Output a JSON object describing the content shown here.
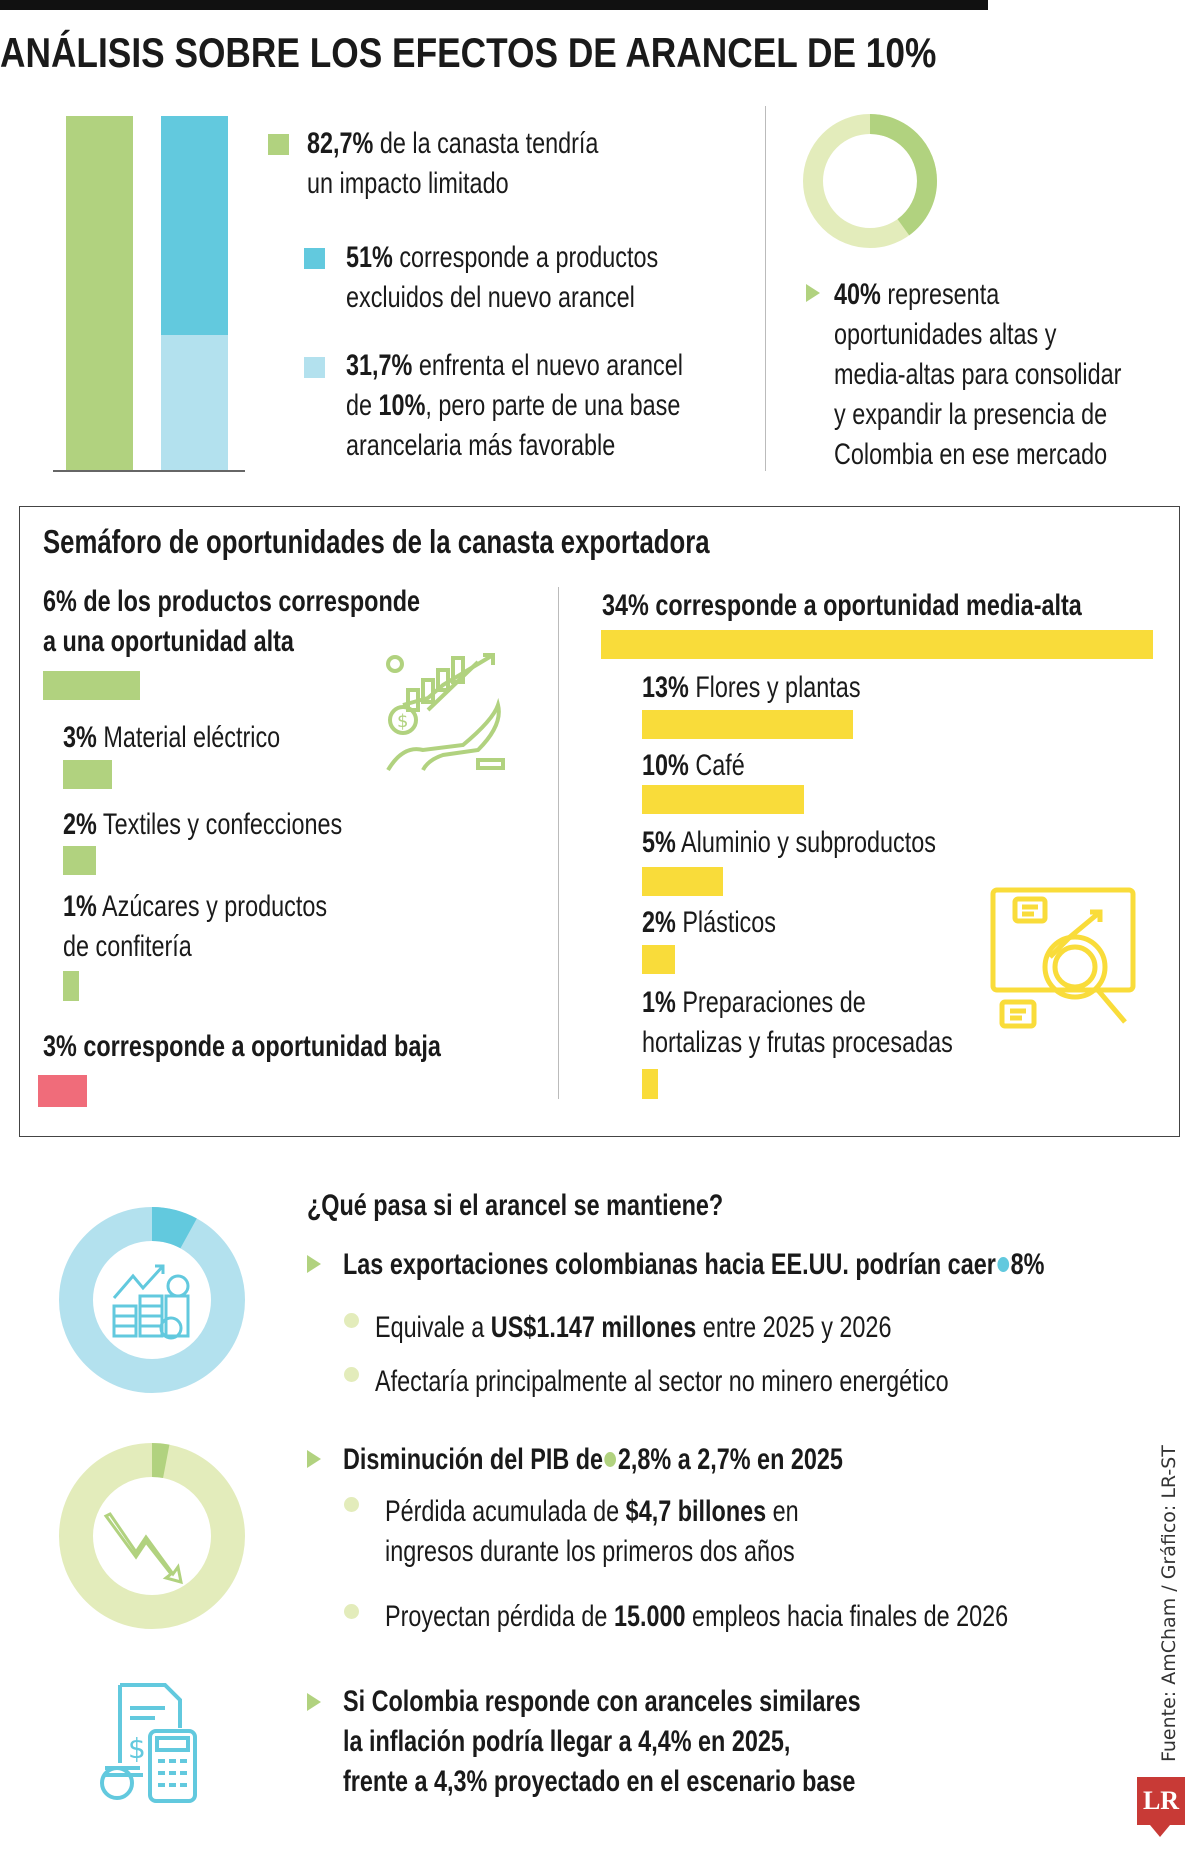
{
  "title": "ANÁLISIS SOBRE LOS EFECTOS DE ARANCEL DE 10%",
  "colors": {
    "green": "#b1d27f",
    "cyan": "#62c9de",
    "light_cyan": "#b3e1ee",
    "yellow": "#f9dc3a",
    "pink": "#f06c7a",
    "pale_green": "#e3ecbb"
  },
  "basket": {
    "limited": {
      "value": "82,7%",
      "text1": "de la canasta tendría",
      "text2": "un impacto limitado",
      "share": 82.7
    },
    "excluded": {
      "value": "51%",
      "text1": "corresponde a productos",
      "text2": "excluidos del nuevo arancel",
      "share": 51
    },
    "favorable": {
      "value": "31,7%",
      "text1": "enfrenta el nuevo arancel",
      "text2a": "de",
      "text2b": "10%",
      "text2c": ", pero parte de una base",
      "text3": "arancelaria más favorable",
      "share": 31.7
    }
  },
  "opportunity_donut": {
    "value": "40%",
    "share": 40,
    "lines": [
      "representa",
      "oportunidades altas y",
      "media-altas para consolidar",
      "y expandir la presencia de",
      "Colombia en ese mercado"
    ]
  },
  "semaforo": {
    "title": "Semáforo de oportunidades de la canasta exportadora",
    "high": {
      "line1": "6% de los productos corresponde",
      "line2": "a una oportunidad alta",
      "value": 6,
      "items": [
        {
          "pct": "3%",
          "label": "Material eléctrico",
          "value": 3
        },
        {
          "pct": "2%",
          "label": "Textiles y confecciones",
          "value": 2
        },
        {
          "pct": "1%",
          "label": "Azúcares y productos",
          "label2": "de confitería",
          "value": 1
        }
      ]
    },
    "low": {
      "text": "3% corresponde a oportunidad baja",
      "value": 3
    },
    "medium_high": {
      "text": "34% corresponde a oportunidad media-alta",
      "value": 34,
      "items": [
        {
          "pct": "13%",
          "label": "Flores y plantas",
          "value": 13
        },
        {
          "pct": "10%",
          "label": "Café",
          "value": 10
        },
        {
          "pct": "5%",
          "label": "Aluminio y subproductos",
          "value": 5
        },
        {
          "pct": "2%",
          "label": "Plásticos",
          "value": 2
        },
        {
          "pct": "1%",
          "label": "Preparaciones de",
          "label2": "hortalizas y frutas procesadas",
          "value": 1
        }
      ]
    },
    "icons": [
      "hand-growth-chart-icon",
      "magnifier-analysis-icon"
    ]
  },
  "scenario": {
    "heading": "¿Qué pasa si el arancel se mantiene?",
    "exports": {
      "text": "Las exportaciones colombianas hacia EE.UU. podrían caer",
      "value": "8%",
      "share": 8,
      "bullets": [
        {
          "a": "Equivale a",
          "b": "US$1.147 millones",
          "c": "entre 2025 y 2026"
        },
        {
          "a": "Afectaría principalmente al sector no minero energético"
        }
      ]
    },
    "gdp": {
      "text": "Disminución del PIB de",
      "value": "2,8% a 2,7% en 2025",
      "share": 3,
      "bullets": [
        {
          "a": "Pérdida acumulada de",
          "b": "$4,7 billones",
          "c": "en",
          "d": "ingresos durante los primeros dos años"
        },
        {
          "a": "Proyectan pérdida de",
          "b": "15.000",
          "c": "empleos hacia finales de 2026"
        }
      ]
    },
    "inflation": {
      "lines": [
        "Si Colombia responde con aranceles similares",
        "la inflación podría llegar a 4,4% en 2025,",
        "frente a 4,3% proyectado en el escenario base"
      ]
    }
  },
  "source": "Fuente: AmCham / Gráfico: LR-ST",
  "logo": "LR"
}
